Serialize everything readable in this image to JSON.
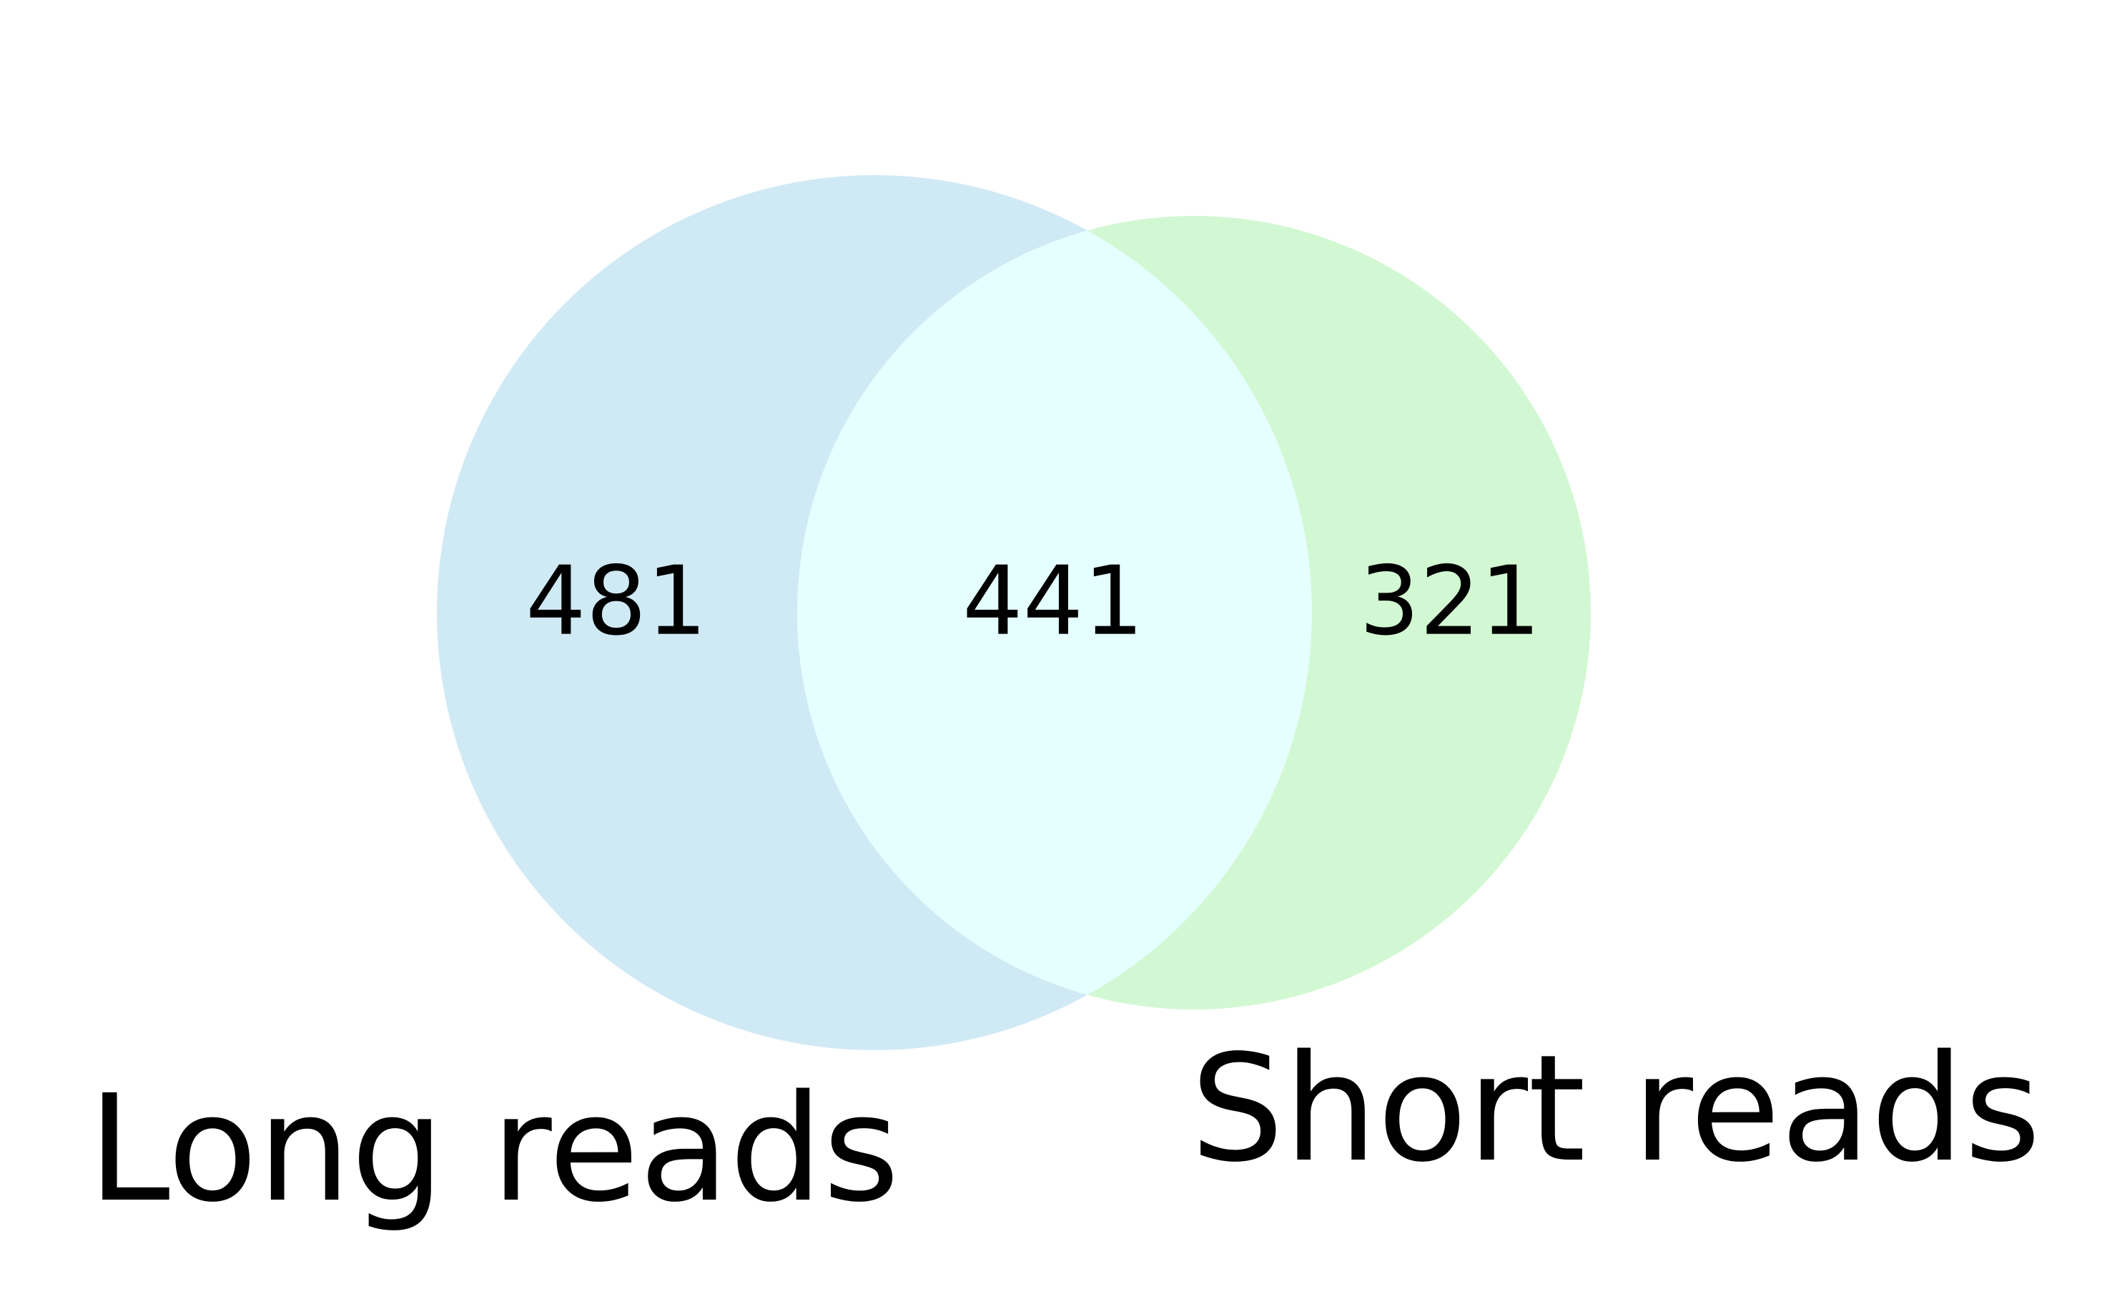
{
  "chart_data": {
    "type": "venn",
    "sets": [
      {
        "name": "Long reads",
        "only": 481,
        "color": "#d0eaf5"
      },
      {
        "name": "Short reads",
        "only": 321,
        "color": "#d2f8d3"
      }
    ],
    "intersection": {
      "value": 441,
      "color": "#e5feff"
    }
  },
  "labels": {
    "left_count": "481",
    "center_count": "441",
    "right_count": "321",
    "left_set": "Long reads",
    "right_set": "Short reads"
  }
}
